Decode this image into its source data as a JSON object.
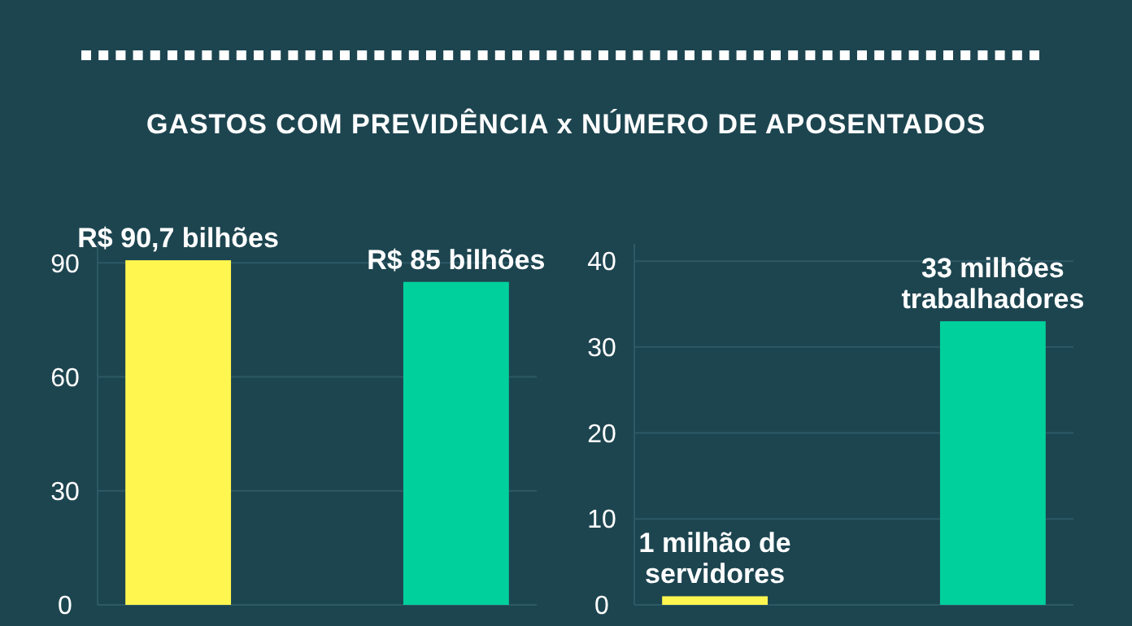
{
  "chart_data": [
    {
      "type": "bar",
      "title": "GASTOS COM PREVIDÊNCIA x NÚMERO DE APOSENTADOS",
      "categories": [
        null,
        null
      ],
      "values": [
        90.7,
        85
      ],
      "colors": [
        "#fff650",
        "#00d09c"
      ],
      "value_labels": [
        "R$ 90,7 bilhões",
        "R$ 85 bilhões"
      ],
      "ylim": [
        0,
        95
      ],
      "yticks": [
        0,
        30,
        60,
        90
      ],
      "grid": "y"
    },
    {
      "type": "bar",
      "categories": [
        null,
        null
      ],
      "values": [
        1,
        33
      ],
      "colors": [
        "#fff650",
        "#00d09c"
      ],
      "value_labels": [
        "1 milhão de servidores",
        "33 milhões trabalhadores"
      ],
      "ylim": [
        0,
        42
      ],
      "yticks": [
        0,
        10,
        20,
        30,
        40
      ],
      "grid": "y"
    }
  ]
}
